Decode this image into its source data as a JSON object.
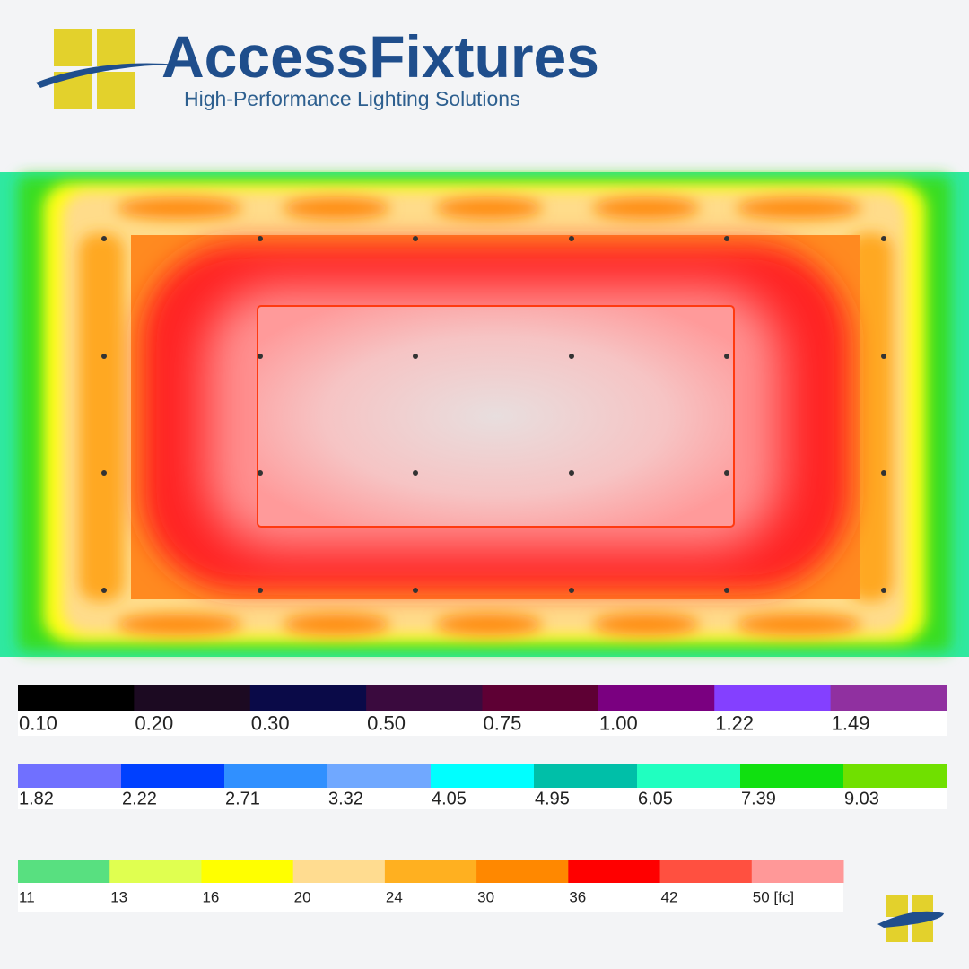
{
  "header": {
    "brand": "AccessFixtures",
    "tagline": "High-Performance Lighting Solutions"
  },
  "legend": [
    {
      "swatches": [
        {
          "color": "#000000",
          "label": "0.10"
        },
        {
          "color": "#1c0a22",
          "label": "0.20"
        },
        {
          "color": "#0a0a48",
          "label": "0.30"
        },
        {
          "color": "#3a0a3e",
          "label": "0.50"
        },
        {
          "color": "#5e0034",
          "label": "0.75"
        },
        {
          "color": "#7a0080",
          "label": "1.00"
        },
        {
          "color": "#8440ff",
          "label": "1.22"
        },
        {
          "color": "#9030a0",
          "label": "1.49"
        }
      ]
    },
    {
      "swatches": [
        {
          "color": "#7070ff",
          "label": "1.82"
        },
        {
          "color": "#0040ff",
          "label": "2.22"
        },
        {
          "color": "#3090ff",
          "label": "2.71"
        },
        {
          "color": "#70a8ff",
          "label": "3.32"
        },
        {
          "color": "#00ffff",
          "label": "4.05"
        },
        {
          "color": "#00bfa8",
          "label": "4.95"
        },
        {
          "color": "#20ffc0",
          "label": "6.05"
        },
        {
          "color": "#10e010",
          "label": "7.39"
        },
        {
          "color": "#70e000",
          "label": "9.03"
        }
      ]
    },
    {
      "swatches": [
        {
          "color": "#58e080",
          "label": "11"
        },
        {
          "color": "#e0ff50",
          "label": "13"
        },
        {
          "color": "#ffff00",
          "label": "16"
        },
        {
          "color": "#ffdc90",
          "label": "20"
        },
        {
          "color": "#ffb020",
          "label": "24"
        },
        {
          "color": "#ff8800",
          "label": "30"
        },
        {
          "color": "#ff0000",
          "label": "36"
        },
        {
          "color": "#ff5040",
          "label": "42"
        },
        {
          "color": "#ff9898",
          "label": "50 [fc]"
        }
      ]
    }
  ]
}
